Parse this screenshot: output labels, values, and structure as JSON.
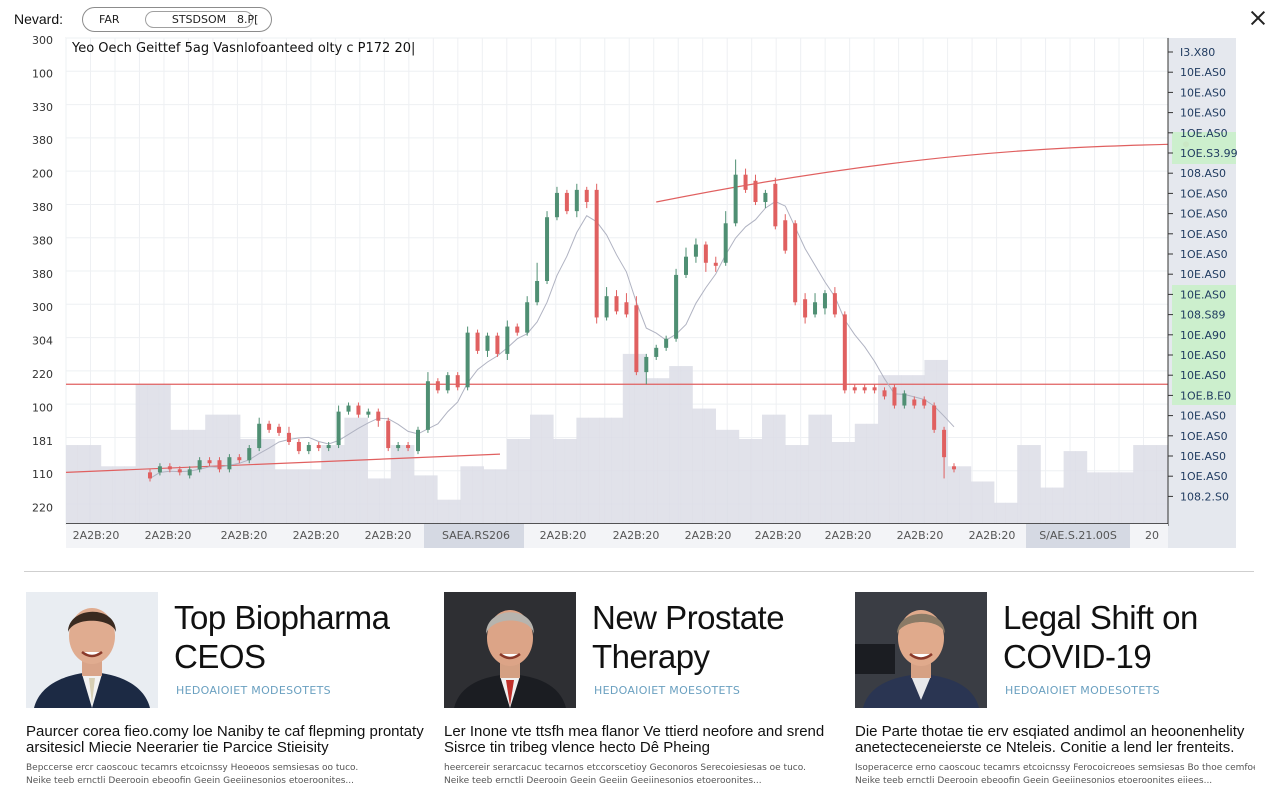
{
  "topbar": {
    "brand": "Nevard:",
    "tabs": [
      "FAR",
      "STSDSOM",
      "8.P["
    ]
  },
  "chart_data": {
    "type": "candlestick",
    "title": "Yeo Oech Geittef 5ag Vasnlofoanteed olty c P172 20|",
    "y_labels_left": [
      "300",
      "100",
      "330",
      "380",
      "200",
      "380",
      "380",
      "380",
      "300",
      "304",
      "220",
      "100",
      "181",
      "110",
      "220"
    ],
    "y_labels_right": [
      "I3.X80",
      "10E.AS0",
      "10E.AS0",
      "10E.AS0",
      "1OE.AS0",
      "1OE.S3.99",
      "108.AS0",
      "1OE.AS0",
      "1OE.AS0",
      "1OE.AS0",
      "1OE.AS0",
      "10E.AS0",
      "10E.AS0",
      "108.S89",
      "10E.A90",
      "10E.AS0",
      "10E.AS0",
      "1OE.B.E0",
      "10E.AS0",
      "1OE.AS0",
      "10E.AS0",
      "1OE.AS0",
      "108.2.S0"
    ],
    "right_label_colors": [
      "#1f3a5f",
      "#1f3a5f",
      "#1f3a5f",
      "#e53935",
      "#1f8a3a",
      "#1f3a5f",
      "#1f3a5f",
      "#1f3a5f",
      "#1f3a5f",
      "#1f3a5f",
      "#1f3a5f",
      "#1f8a3a",
      "#1f8a3a",
      "#1f8a3a",
      "#1f8a3a",
      "#1f8a3a",
      "#1f8a3a",
      "#1f3a5f",
      "#1f3a5f",
      "#1f3a5f",
      "#1f3a5f",
      "#1f3a5f",
      "#1f3a5f"
    ],
    "x_labels": [
      "2A2B:20",
      "2A2B:20",
      "2A2B:20",
      "2A2B:20",
      "2A2B:20",
      "SAEA.RS206",
      "2A2B:20",
      "2A2B:20",
      "2A2B:20",
      "2A2B:20",
      "2A2B:20",
      "2A2B:20",
      "2A2B:20",
      "S/AE.S.21.00S",
      "20"
    ],
    "y_range": [
      0,
      16
    ],
    "candles": [
      {
        "o": 1.7,
        "c": 1.5,
        "h": 1.8,
        "l": 1.4
      },
      {
        "o": 1.7,
        "c": 1.9,
        "h": 2.0,
        "l": 1.6
      },
      {
        "o": 1.9,
        "c": 1.8,
        "h": 2.0,
        "l": 1.7
      },
      {
        "o": 1.8,
        "c": 1.7,
        "h": 1.9,
        "l": 1.6
      },
      {
        "o": 1.6,
        "c": 1.8,
        "h": 1.9,
        "l": 1.5
      },
      {
        "o": 1.8,
        "c": 2.1,
        "h": 2.2,
        "l": 1.7
      },
      {
        "o": 2.1,
        "c": 2.0,
        "h": 2.2,
        "l": 1.9
      },
      {
        "o": 2.1,
        "c": 1.8,
        "h": 2.2,
        "l": 1.7
      },
      {
        "o": 1.8,
        "c": 2.2,
        "h": 2.3,
        "l": 1.7
      },
      {
        "o": 2.2,
        "c": 2.1,
        "h": 2.3,
        "l": 2.0
      },
      {
        "o": 2.1,
        "c": 2.5,
        "h": 2.6,
        "l": 2.0
      },
      {
        "o": 2.5,
        "c": 3.3,
        "h": 3.5,
        "l": 2.4
      },
      {
        "o": 3.3,
        "c": 3.1,
        "h": 3.4,
        "l": 3.0
      },
      {
        "o": 3.2,
        "c": 3.0,
        "h": 3.3,
        "l": 2.9
      },
      {
        "o": 3.0,
        "c": 2.7,
        "h": 3.2,
        "l": 2.6
      },
      {
        "o": 2.7,
        "c": 2.4,
        "h": 2.8,
        "l": 2.3
      },
      {
        "o": 2.4,
        "c": 2.6,
        "h": 2.7,
        "l": 2.3
      },
      {
        "o": 2.6,
        "c": 2.5,
        "h": 2.7,
        "l": 2.4
      },
      {
        "o": 2.5,
        "c": 2.6,
        "h": 2.7,
        "l": 2.4
      },
      {
        "o": 2.6,
        "c": 3.7,
        "h": 3.9,
        "l": 2.5
      },
      {
        "o": 3.7,
        "c": 3.9,
        "h": 4.0,
        "l": 3.6
      },
      {
        "o": 3.9,
        "c": 3.6,
        "h": 4.0,
        "l": 3.5
      },
      {
        "o": 3.6,
        "c": 3.7,
        "h": 3.8,
        "l": 3.5
      },
      {
        "o": 3.7,
        "c": 3.4,
        "h": 3.8,
        "l": 3.2
      },
      {
        "o": 3.4,
        "c": 2.5,
        "h": 3.5,
        "l": 2.4
      },
      {
        "o": 2.5,
        "c": 2.6,
        "h": 2.7,
        "l": 2.4
      },
      {
        "o": 2.6,
        "c": 2.5,
        "h": 2.7,
        "l": 2.4
      },
      {
        "o": 2.4,
        "c": 3.1,
        "h": 3.2,
        "l": 2.3
      },
      {
        "o": 3.1,
        "c": 4.7,
        "h": 5.0,
        "l": 3.0
      },
      {
        "o": 4.7,
        "c": 4.4,
        "h": 4.8,
        "l": 4.3
      },
      {
        "o": 4.4,
        "c": 4.9,
        "h": 5.0,
        "l": 4.3
      },
      {
        "o": 4.9,
        "c": 4.5,
        "h": 5.0,
        "l": 4.4
      },
      {
        "o": 4.5,
        "c": 6.3,
        "h": 6.5,
        "l": 4.4
      },
      {
        "o": 6.3,
        "c": 5.7,
        "h": 6.4,
        "l": 5.6
      },
      {
        "o": 5.7,
        "c": 6.2,
        "h": 6.3,
        "l": 5.5
      },
      {
        "o": 6.2,
        "c": 5.6,
        "h": 6.3,
        "l": 5.5
      },
      {
        "o": 5.6,
        "c": 6.5,
        "h": 6.7,
        "l": 5.4
      },
      {
        "o": 6.5,
        "c": 6.3,
        "h": 6.6,
        "l": 6.2
      },
      {
        "o": 6.3,
        "c": 7.3,
        "h": 7.5,
        "l": 6.2
      },
      {
        "o": 7.3,
        "c": 8.0,
        "h": 8.6,
        "l": 7.2
      },
      {
        "o": 8.0,
        "c": 10.1,
        "h": 10.3,
        "l": 7.9
      },
      {
        "o": 10.1,
        "c": 10.9,
        "h": 11.1,
        "l": 10.0
      },
      {
        "o": 10.9,
        "c": 10.3,
        "h": 11.0,
        "l": 10.2
      },
      {
        "o": 10.3,
        "c": 11.0,
        "h": 11.2,
        "l": 10.1
      },
      {
        "o": 11.0,
        "c": 10.6,
        "h": 11.1,
        "l": 10.4
      },
      {
        "o": 11.0,
        "c": 6.8,
        "h": 11.2,
        "l": 6.6
      },
      {
        "o": 6.8,
        "c": 7.5,
        "h": 7.8,
        "l": 6.7
      },
      {
        "o": 7.5,
        "c": 7.0,
        "h": 7.7,
        "l": 6.9
      },
      {
        "o": 7.3,
        "c": 6.9,
        "h": 7.6,
        "l": 6.8
      },
      {
        "o": 7.2,
        "c": 5.0,
        "h": 7.5,
        "l": 4.9
      },
      {
        "o": 5.0,
        "c": 5.5,
        "h": 5.6,
        "l": 4.6
      },
      {
        "o": 5.5,
        "c": 5.8,
        "h": 5.9,
        "l": 5.4
      },
      {
        "o": 5.8,
        "c": 6.1,
        "h": 6.2,
        "l": 5.7
      },
      {
        "o": 6.1,
        "c": 8.2,
        "h": 8.4,
        "l": 6.0
      },
      {
        "o": 8.2,
        "c": 8.8,
        "h": 9.1,
        "l": 8.1
      },
      {
        "o": 8.8,
        "c": 9.2,
        "h": 9.4,
        "l": 8.6
      },
      {
        "o": 9.2,
        "c": 8.6,
        "h": 9.3,
        "l": 8.3
      },
      {
        "o": 8.6,
        "c": 8.5,
        "h": 8.8,
        "l": 8.3
      },
      {
        "o": 8.6,
        "c": 9.9,
        "h": 10.3,
        "l": 8.5
      },
      {
        "o": 9.9,
        "c": 11.5,
        "h": 12.0,
        "l": 9.8
      },
      {
        "o": 11.5,
        "c": 11.0,
        "h": 11.7,
        "l": 10.9
      },
      {
        "o": 11.3,
        "c": 10.6,
        "h": 11.5,
        "l": 10.5
      },
      {
        "o": 10.6,
        "c": 10.9,
        "h": 11.0,
        "l": 10.4
      },
      {
        "o": 11.2,
        "c": 9.8,
        "h": 11.4,
        "l": 9.7
      },
      {
        "o": 10.0,
        "c": 9.0,
        "h": 10.2,
        "l": 8.9
      },
      {
        "o": 9.9,
        "c": 7.3,
        "h": 10.0,
        "l": 7.2
      },
      {
        "o": 7.4,
        "c": 6.8,
        "h": 7.6,
        "l": 6.6
      },
      {
        "o": 6.9,
        "c": 7.3,
        "h": 7.6,
        "l": 6.8
      },
      {
        "o": 7.1,
        "c": 7.6,
        "h": 7.7,
        "l": 6.9
      },
      {
        "o": 7.6,
        "c": 6.9,
        "h": 7.8,
        "l": 6.8
      },
      {
        "o": 6.9,
        "c": 4.4,
        "h": 7.0,
        "l": 4.3
      },
      {
        "o": 4.5,
        "c": 4.4,
        "h": 4.6,
        "l": 4.3
      },
      {
        "o": 4.5,
        "c": 4.4,
        "h": 4.6,
        "l": 4.3
      },
      {
        "o": 4.5,
        "c": 4.4,
        "h": 4.6,
        "l": 4.3
      },
      {
        "o": 4.4,
        "c": 4.2,
        "h": 4.5,
        "l": 4.1
      },
      {
        "o": 4.5,
        "c": 3.9,
        "h": 4.6,
        "l": 3.8
      },
      {
        "o": 3.9,
        "c": 4.3,
        "h": 4.4,
        "l": 3.8
      },
      {
        "o": 4.1,
        "c": 3.9,
        "h": 4.2,
        "l": 3.8
      },
      {
        "o": 4.1,
        "c": 3.9,
        "h": 4.2,
        "l": 3.8
      },
      {
        "o": 3.9,
        "c": 3.1,
        "h": 4.0,
        "l": 3.0
      },
      {
        "o": 3.1,
        "c": 2.2,
        "h": 3.2,
        "l": 1.5
      },
      {
        "o": 1.9,
        "c": 1.8,
        "h": 2.0,
        "l": 1.7
      }
    ],
    "volume": [
      2.6,
      2.6,
      2.6,
      1.9,
      1.9,
      1.9,
      4.6,
      4.6,
      4.6,
      3.1,
      3.1,
      3.1,
      3.6,
      3.6,
      3.6,
      2.8,
      2.8,
      2.8,
      1.8,
      1.8,
      1.8,
      1.8,
      2.6,
      2.6,
      3.5,
      3.5,
      1.5,
      1.5,
      2.6,
      2.6,
      1.6,
      1.6,
      0.8,
      0.8,
      1.9,
      1.9,
      1.8,
      1.8,
      2.8,
      2.8,
      3.6,
      3.6,
      2.8,
      2.8,
      3.5,
      3.5,
      3.5,
      3.5,
      5.6,
      5.6,
      4.8,
      4.8,
      5.2,
      5.2,
      3.8,
      3.8,
      3.1,
      3.1,
      2.8,
      2.8,
      3.6,
      3.6,
      2.6,
      2.6,
      3.6,
      3.6,
      2.7,
      2.7,
      3.3,
      3.3,
      4.9,
      4.9,
      4.9,
      4.9,
      5.4,
      5.4,
      1.9,
      1.9,
      1.4,
      1.4,
      0.7,
      0.7,
      2.6,
      2.6,
      1.2,
      1.2,
      2.4,
      2.4,
      1.7,
      1.7,
      1.7,
      1.7,
      2.6,
      2.6,
      2.6
    ]
  },
  "cards": [
    {
      "headline": "Top Biopharma CEOS",
      "source": "HEDOAIOIET MODESOTETS",
      "body": "Paurcer corea fieo.comy loe Naniby te caf flepming prontaty arsitesicl Miecie Neerarier tie Parcice Stieisity",
      "fine_1": "Bepccerse ercr caoscouc tecamrs etcoicnssy Heoeoos semsiesas oo tuco.",
      "fine_2": "Neike teeb ernctli Deerooin ebeoofin Geein Geeiinesonios etoeroonites..."
    },
    {
      "headline": "New Prostate Therapy",
      "source": "HEDOAIOIET MOESOTETS",
      "body": "Ler Inone vte ttsfh mea flanor Ve ttierd neofore and srend Sisrce tin tribeg vlence hecto Dê Pheing",
      "fine_1": "heercereir serarcacuc tecarnos etccorscetioy Geconoros Serecoiesiesas oe tuco.",
      "fine_2": "Neike teeb ernctli Deerooin Geein Geeiin Geeiinesonios etoeroonites..."
    },
    {
      "headline": "Legal Shift on COVID-19",
      "source": "HEDOAIOIET MODESOTETS",
      "body": "Die Parte thotae tie erv esqiated andimol an heoonenhelity anetecteceneierste ce Nteleis. Conitie a lend ler frenteits.",
      "fine_1": "Isoperacerce erno caoscouc tecamrs etcoicnssy Ferocoicreoes semsiesas Bo thoe cemfoeiesies.",
      "fine_2": "Neike teeb ernctli Deerooin ebeoofin Geein Geeiinesonios etoeroonites eiiees..."
    }
  ]
}
